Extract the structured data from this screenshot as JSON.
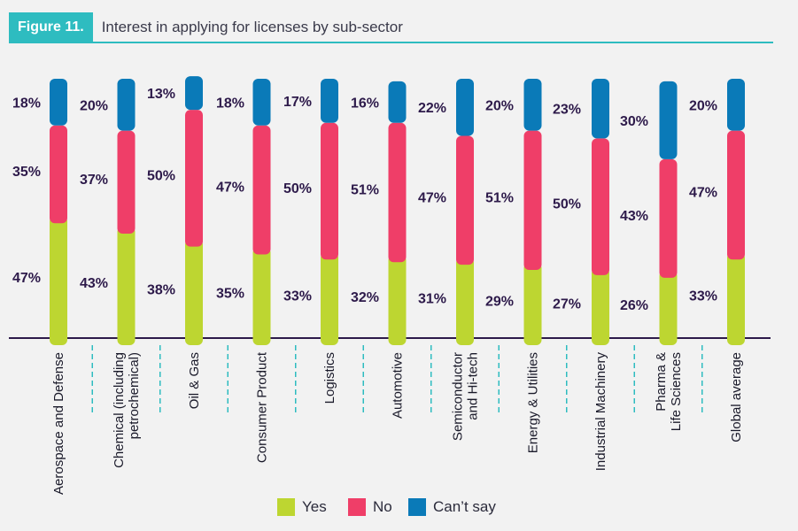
{
  "header": {
    "figure_label": "Figure 11.",
    "title": "Interest in applying for licenses by sub-sector"
  },
  "colors": {
    "yes": "#bdd631",
    "no": "#ef3e68",
    "cant_say": "#0a7ab8",
    "label": "#2d1a4a",
    "accent": "#2ebcc0"
  },
  "chart_data": {
    "type": "bar",
    "stacked": true,
    "normalized_percent": true,
    "categories": [
      "Aerospace and Defense",
      "Chemical (including\npetrochemical)",
      "Oil & Gas",
      "Consumer Product",
      "Logistics",
      "Automotive",
      "Semiconductor\nand Hi-tech",
      "Energy & Utilities",
      "Industrial Machinery",
      "Pharma &\nLife Sciences",
      "Global average"
    ],
    "series": [
      {
        "name": "Yes",
        "values": [
          47,
          43,
          38,
          35,
          33,
          32,
          31,
          29,
          27,
          26,
          33
        ]
      },
      {
        "name": "No",
        "values": [
          35,
          37,
          50,
          47,
          50,
          51,
          47,
          51,
          50,
          43,
          47
        ]
      },
      {
        "name": "Can’t say",
        "values": [
          18,
          20,
          13,
          18,
          17,
          16,
          22,
          20,
          23,
          30,
          20
        ]
      }
    ],
    "value_suffix": "%",
    "legend_position": "bottom"
  }
}
